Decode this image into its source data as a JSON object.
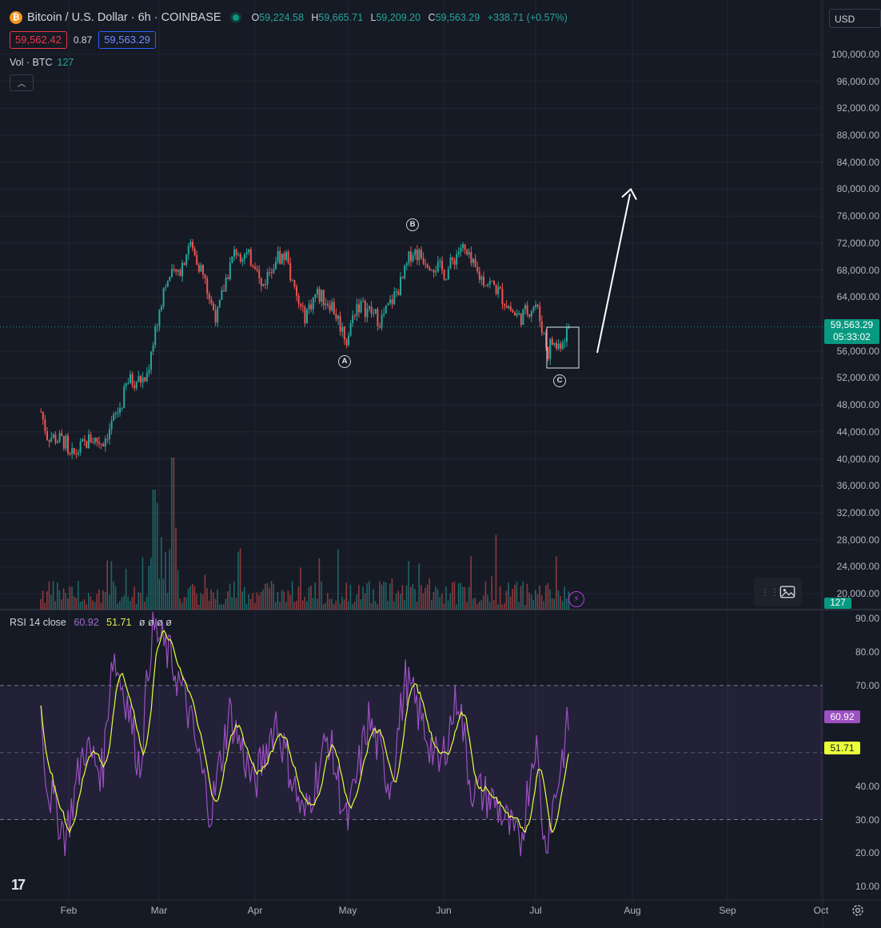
{
  "header": {
    "symbol_title": "Bitcoin / U.S. Dollar · 6h · COINBASE",
    "coin_icon": "bitcoin-icon",
    "ohlc": {
      "open_label": "O",
      "open": "59,224.58",
      "high_label": "H",
      "high": "59,665.71",
      "low_label": "L",
      "low": "59,209.20",
      "close_label": "C",
      "close": "59,563.29",
      "change": "+338.71 (+0.57%)"
    },
    "bid": "59,562.42",
    "spread": "0.87",
    "ask": "59,563.29",
    "volume_label": "Vol · BTC",
    "volume_value": "127",
    "currency": "USD"
  },
  "price_axis": {
    "labels": [
      "100,000.00",
      "96,000.00",
      "92,000.00",
      "88,000.00",
      "84,000.00",
      "80,000.00",
      "76,000.00",
      "72,000.00",
      "68,000.00",
      "64,000.00",
      "56,000.00",
      "52,000.00",
      "48,000.00",
      "44,000.00",
      "40,000.00",
      "36,000.00",
      "32,000.00",
      "28,000.00",
      "24,000.00",
      "20,000.00"
    ],
    "current_price": "59,563.29",
    "countdown": "05:33:02",
    "volume_badge": "127"
  },
  "rsi": {
    "label": "RSI",
    "params": "14 close",
    "value": "60.92",
    "sma_value": "51.71",
    "extra_values": "ø ø ø ø",
    "axis_labels": [
      "90.00",
      "80.00",
      "70.00",
      "40.00",
      "30.00",
      "20.00",
      "10.00"
    ],
    "upper_band": 70,
    "lower_band": 30
  },
  "time_axis": {
    "months": [
      "Feb",
      "Mar",
      "Apr",
      "May",
      "Jun",
      "Jul",
      "Aug",
      "Sep",
      "Oct"
    ]
  },
  "annotations": {
    "wave_labels": [
      "A",
      "B",
      "C"
    ],
    "projection_arrow_target": 80000
  },
  "colors": {
    "background": "#161a25",
    "up": "#26a69a",
    "down": "#ef5350",
    "rsi_line": "#9c50c2",
    "rsi_sma": "#eaff3a",
    "accent_green": "#089981"
  },
  "chart_data": {
    "type": "candlestick",
    "series_name": "Bitcoin / U.S. Dollar",
    "interval": "6h",
    "ylim": [
      18000,
      102000
    ],
    "price_path": [
      {
        "x": "Jan 23",
        "y": 47000
      },
      {
        "x": "Jan 25",
        "y": 43500
      },
      {
        "x": "Jan 31",
        "y": 42500
      },
      {
        "x": "Jan 31b",
        "y": 39800
      },
      {
        "x": "Feb 8",
        "y": 43000
      },
      {
        "x": "Feb 12",
        "y": 42500
      },
      {
        "x": "Feb 18",
        "y": 48000
      },
      {
        "x": "Feb 20",
        "y": 51500
      },
      {
        "x": "Feb 26",
        "y": 51800
      },
      {
        "x": "Feb 28",
        "y": 56500
      },
      {
        "x": "Mar 1",
        "y": 61500
      },
      {
        "x": "Mar 3",
        "y": 66000
      },
      {
        "x": "Mar 8",
        "y": 68000
      },
      {
        "x": "Mar 11",
        "y": 72000
      },
      {
        "x": "Mar 15",
        "y": 68000
      },
      {
        "x": "Mar 18",
        "y": 63000
      },
      {
        "x": "Mar 20",
        "y": 61000
      },
      {
        "x": "Mar 23",
        "y": 67000
      },
      {
        "x": "Mar 26",
        "y": 71000
      },
      {
        "x": "Apr 2",
        "y": 69000
      },
      {
        "x": "Apr 3",
        "y": 65000
      },
      {
        "x": "Apr 8",
        "y": 70000
      },
      {
        "x": "Apr 12",
        "y": 70000
      },
      {
        "x": "Apr 13",
        "y": 66000
      },
      {
        "x": "Apr 17",
        "y": 61000
      },
      {
        "x": "Apr 21",
        "y": 64500
      },
      {
        "x": "Apr 26",
        "y": 63000
      },
      {
        "x": "May 1",
        "y": 57500
      },
      {
        "x": "May 4",
        "y": 63000
      },
      {
        "x": "May 8",
        "y": 62000
      },
      {
        "x": "May 12",
        "y": 60500
      },
      {
        "x": "May 15",
        "y": 63000
      },
      {
        "x": "May 19",
        "y": 66500
      },
      {
        "x": "May 22",
        "y": 71000
      },
      {
        "x": "May 27",
        "y": 69500
      },
      {
        "x": "Jun 2",
        "y": 67500
      },
      {
        "x": "Jun 6",
        "y": 70800
      },
      {
        "x": "Jun 7",
        "y": 71500
      },
      {
        "x": "Jun 10",
        "y": 69000
      },
      {
        "x": "Jun 13",
        "y": 67000
      },
      {
        "x": "Jun 18",
        "y": 65500
      },
      {
        "x": "Jun 24",
        "y": 61500
      },
      {
        "x": "Jun 26",
        "y": 61000
      },
      {
        "x": "Jul 1",
        "y": 63000
      },
      {
        "x": "Jul 4",
        "y": 58000
      },
      {
        "x": "Jul 5",
        "y": 55500
      },
      {
        "x": "Jul 6",
        "y": 57500
      },
      {
        "x": "Jul 8",
        "y": 56500
      },
      {
        "x": "Jul 10",
        "y": 58000
      },
      {
        "x": "Jul 12",
        "y": 59563.29
      }
    ],
    "volume_profile": "spiky bars, largest spikes near Feb 28 - Mar 5",
    "rsi_path": [
      {
        "x": "Jan 23",
        "y": 62
      },
      {
        "x": "Jan 25",
        "y": 40
      },
      {
        "x": "Jan 31",
        "y": 25
      },
      {
        "x": "Feb 6",
        "y": 52
      },
      {
        "x": "Feb 12",
        "y": 44
      },
      {
        "x": "Feb 15",
        "y": 80
      },
      {
        "x": "Feb 20",
        "y": 65
      },
      {
        "x": "Feb 24",
        "y": 45
      },
      {
        "x": "Feb 28",
        "y": 88
      },
      {
        "x": "Mar 5",
        "y": 78
      },
      {
        "x": "Mar 10",
        "y": 65
      },
      {
        "x": "Mar 18",
        "y": 32
      },
      {
        "x": "Mar 24",
        "y": 62
      },
      {
        "x": "Apr 1",
        "y": 40
      },
      {
        "x": "Apr 8",
        "y": 60
      },
      {
        "x": "Apr 17",
        "y": 30
      },
      {
        "x": "Apr 25",
        "y": 55
      },
      {
        "x": "May 1",
        "y": 28
      },
      {
        "x": "May 8",
        "y": 60
      },
      {
        "x": "May 15",
        "y": 40
      },
      {
        "x": "May 20",
        "y": 72
      },
      {
        "x": "May 31",
        "y": 45
      },
      {
        "x": "Jun 6",
        "y": 68
      },
      {
        "x": "Jun 10",
        "y": 40
      },
      {
        "x": "Jun 18",
        "y": 35
      },
      {
        "x": "Jun 26",
        "y": 22
      },
      {
        "x": "Jul 1",
        "y": 55
      },
      {
        "x": "Jul 4",
        "y": 22
      },
      {
        "x": "Jul 8",
        "y": 40
      },
      {
        "x": "Jul 12",
        "y": 60.92
      }
    ]
  }
}
